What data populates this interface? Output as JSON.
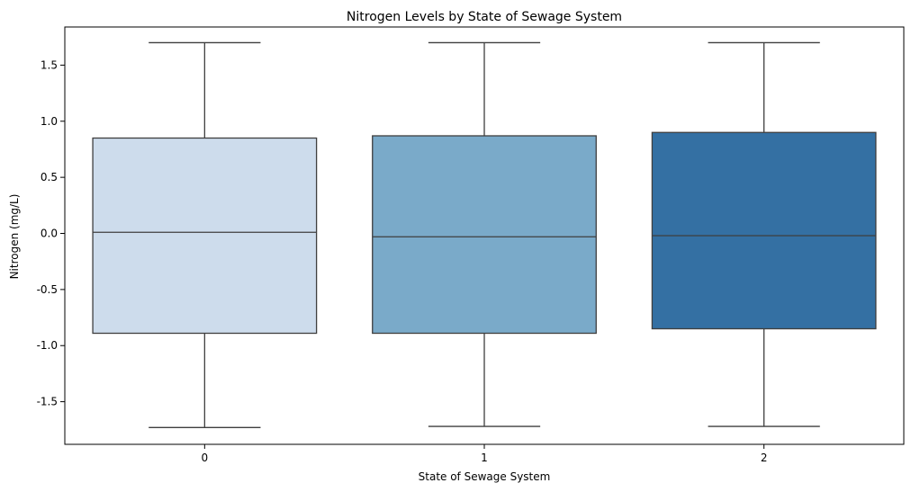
{
  "chart_data": {
    "type": "box",
    "title": "Nitrogen Levels by State of Sewage System",
    "xlabel": "State of Sewage System",
    "ylabel": "Nitrogen (mg/L)",
    "ylim": [
      -1.88,
      1.84
    ],
    "yticks": [
      "-1.5",
      "-1.0",
      "-0.5",
      "0.0",
      "0.5",
      "1.0",
      "1.5"
    ],
    "yticks_values": [
      -1.5,
      -1.0,
      -0.5,
      0.0,
      0.5,
      1.0,
      1.5
    ],
    "grid": false,
    "categories": [
      "0",
      "1",
      "2"
    ],
    "boxes": [
      {
        "category": "0",
        "whisker_low": -1.73,
        "q1": -0.89,
        "median": 0.01,
        "q3": 0.85,
        "whisker_high": 1.7,
        "color": "#cddcec"
      },
      {
        "category": "1",
        "whisker_low": -1.72,
        "q1": -0.89,
        "median": -0.03,
        "q3": 0.87,
        "whisker_high": 1.7,
        "color": "#7aaac9"
      },
      {
        "category": "2",
        "whisker_low": -1.72,
        "q1": -0.85,
        "median": -0.02,
        "q3": 0.9,
        "whisker_high": 1.7,
        "color": "#3470a3"
      }
    ]
  }
}
